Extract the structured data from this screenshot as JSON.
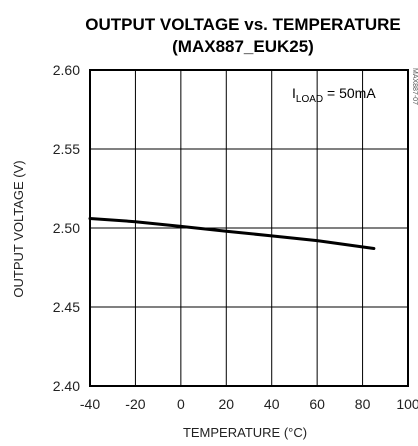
{
  "chart_data": {
    "type": "line",
    "title": "OUTPUT VOLTAGE vs. TEMPERATURE",
    "subtitle": "(MAX887_EUK25)",
    "xlabel": "TEMPERATURE (°C)",
    "ylabel": "OUTPUT VOLTAGE (V)",
    "xlim": [
      -40,
      100
    ],
    "ylim": [
      2.4,
      2.6
    ],
    "xticks": [
      "-40",
      "-20",
      "0",
      "20",
      "40",
      "60",
      "80",
      "100"
    ],
    "yticks": [
      "2.60",
      "2.55",
      "2.50",
      "2.45",
      "2.40"
    ],
    "grid": true,
    "annotation": {
      "main": "I",
      "sub": "LOAD",
      "rest": " = 50mA"
    },
    "side_code": "MAX887-07",
    "series": [
      {
        "x": [
          -40,
          -20,
          0,
          20,
          40,
          60,
          85
        ],
        "y": [
          2.506,
          2.504,
          2.501,
          2.498,
          2.495,
          2.492,
          2.487
        ]
      }
    ]
  }
}
